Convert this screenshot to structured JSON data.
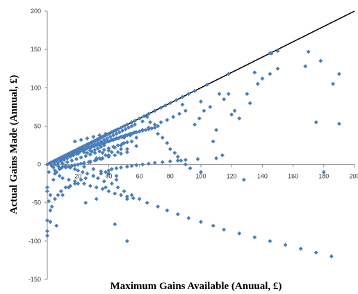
{
  "chart_data": {
    "type": "scatter",
    "title": "",
    "xlabel": "Maximum Gains Available (Anuual, £)",
    "ylabel": "Actual Gains Made (Annual, £)",
    "xlim": [
      0,
      200
    ],
    "ylim": [
      -150,
      200
    ],
    "x_ticks": [
      "20",
      "40",
      "60",
      "80",
      "100",
      "120",
      "140",
      "160",
      "180",
      "200"
    ],
    "y_ticks": [
      "200",
      "150",
      "100",
      "50",
      "0",
      "-50",
      "-100",
      "-150"
    ],
    "grid": false,
    "legend": "none",
    "marker_color": "#4a7ebb",
    "reference_line": {
      "x": [
        0,
        200
      ],
      "y": [
        0,
        200
      ],
      "color": "#000000"
    },
    "series": [
      {
        "x": [
          0,
          1,
          2,
          3,
          4,
          5,
          6,
          7,
          8,
          9,
          10,
          11,
          12,
          13,
          14,
          15,
          16,
          17,
          18,
          19,
          20,
          21,
          22,
          23,
          24,
          25,
          26,
          27,
          28,
          29,
          30,
          31,
          32,
          33,
          34,
          35,
          36,
          37,
          38,
          39,
          40,
          41,
          42,
          43,
          44,
          45,
          46,
          48,
          50,
          52,
          55,
          57,
          60,
          63,
          66,
          70,
          74,
          77,
          80,
          84,
          88,
          92,
          96,
          104,
          118,
          145,
          150,
          170,
          2,
          4,
          5,
          6,
          8,
          9,
          10,
          11,
          12,
          13,
          14,
          15,
          16,
          17,
          18,
          19,
          20,
          21,
          22,
          23,
          24,
          25,
          26,
          27,
          28,
          29,
          30,
          31,
          32,
          33,
          34,
          35,
          36,
          37,
          38,
          39,
          40,
          41,
          42,
          43,
          44,
          45,
          46,
          47,
          48,
          49,
          50,
          51,
          52,
          53,
          54,
          55,
          56,
          57,
          58,
          60,
          62,
          64,
          66,
          68,
          70,
          3,
          5,
          7,
          9,
          11,
          13,
          15,
          17,
          19,
          21,
          23,
          25,
          27,
          29,
          31,
          33,
          35,
          37,
          39,
          41,
          43,
          45,
          47,
          49,
          51,
          53,
          55,
          57,
          4,
          7,
          10,
          13,
          16,
          19,
          22,
          25,
          28,
          31,
          34,
          37,
          40,
          43,
          46,
          49,
          52,
          8,
          12,
          16,
          20,
          24,
          28,
          32,
          36,
          40,
          44,
          48,
          52,
          5,
          9,
          14,
          18,
          22,
          27,
          31,
          35,
          65,
          67,
          70,
          72,
          75,
          78,
          80,
          83,
          85,
          87,
          90,
          93,
          96,
          99,
          102,
          106,
          110,
          112,
          115,
          118,
          120,
          125,
          128,
          132,
          135,
          137,
          140,
          145,
          150,
          168,
          175,
          180,
          186,
          190,
          62,
          72,
          88,
          100,
          108,
          114,
          122,
          130,
          146,
          178,
          190,
          0,
          2,
          3,
          5,
          7,
          9,
          12,
          15,
          18,
          22,
          25,
          30,
          35,
          38,
          40,
          42,
          45,
          48,
          52,
          55,
          58,
          62,
          66,
          70,
          75,
          80,
          85,
          90,
          98,
          110,
          1,
          5,
          8,
          10,
          14,
          18,
          24,
          28,
          32,
          36,
          40,
          44,
          48,
          52,
          56,
          0,
          0,
          2,
          4,
          6,
          8,
          10,
          12,
          15,
          18,
          20,
          23,
          26,
          30,
          33,
          37,
          42,
          46,
          50,
          55,
          60,
          65,
          72,
          78,
          85,
          92,
          100,
          108,
          115,
          125,
          135,
          145,
          155,
          165,
          175,
          185,
          0,
          1,
          2,
          6,
          10,
          14,
          20,
          25,
          32,
          38,
          44,
          52,
          0,
          6,
          45,
          52,
          28,
          34,
          40,
          46,
          52,
          58,
          36,
          40,
          44,
          48,
          50,
          55,
          58,
          18,
          22,
          26,
          30,
          34,
          38,
          24,
          30,
          35,
          40,
          45,
          50,
          54,
          58,
          62,
          66,
          70,
          74,
          78,
          82,
          86,
          90,
          12,
          16,
          20,
          24,
          28,
          32,
          38,
          42,
          48,
          21,
          23,
          25,
          27,
          29,
          31,
          33,
          100,
          26,
          29,
          31,
          33,
          35,
          37
        ],
        "y": [
          0,
          1,
          2,
          3,
          4,
          5,
          6,
          7,
          8,
          9,
          10,
          11,
          12,
          13,
          14,
          15,
          16,
          17,
          18,
          19,
          20,
          21,
          22,
          23,
          24,
          25,
          26,
          27,
          28,
          29,
          30,
          31,
          32,
          33,
          34,
          35,
          36,
          37,
          38,
          39,
          40,
          41,
          42,
          43,
          44,
          45,
          46,
          48,
          50,
          52,
          55,
          57,
          60,
          63,
          66,
          70,
          74,
          77,
          80,
          84,
          88,
          92,
          96,
          104,
          118,
          145,
          148,
          147,
          1,
          3,
          4,
          5,
          6,
          7,
          8,
          9,
          10,
          11,
          12,
          12,
          13,
          14,
          15,
          16,
          16,
          17,
          18,
          19,
          19,
          20,
          21,
          22,
          22,
          23,
          24,
          24,
          25,
          26,
          26,
          27,
          28,
          28,
          29,
          30,
          30,
          31,
          32,
          32,
          33,
          34,
          34,
          35,
          36,
          36,
          37,
          38,
          38,
          39,
          40,
          40,
          41,
          42,
          42,
          43,
          44,
          45,
          46,
          47,
          48,
          -2,
          0,
          2,
          4,
          6,
          8,
          10,
          12,
          14,
          16,
          18,
          20,
          22,
          24,
          26,
          28,
          30,
          32,
          34,
          36,
          38,
          40,
          42,
          44,
          46,
          48,
          50,
          52,
          -4,
          -2,
          1,
          3,
          5,
          7,
          9,
          11,
          13,
          15,
          17,
          19,
          21,
          23,
          25,
          27,
          29,
          -6,
          -4,
          -2,
          0,
          2,
          4,
          6,
          8,
          10,
          12,
          14,
          16,
          -8,
          -5,
          -3,
          -1,
          1,
          3,
          5,
          7,
          62,
          55,
          48,
          40,
          35,
          28,
          20,
          15,
          10,
          5,
          0,
          -5,
          52,
          60,
          70,
          75,
          45,
          92,
          85,
          92,
          65,
          60,
          -20,
          80,
          120,
          105,
          112,
          118,
          125,
          128,
          55,
          -10,
          105,
          118,
          56,
          50,
          78,
          82,
          30,
          12,
          70,
          92,
          145,
          135,
          53,
          -93,
          -75,
          -55,
          -45,
          -40,
          -35,
          -30,
          -28,
          -25,
          -20,
          -18,
          -15,
          -12,
          -10,
          -8,
          -6,
          -5,
          -4,
          -3,
          -2,
          -1,
          0,
          1,
          2,
          3,
          4,
          5,
          6,
          7,
          8,
          -10,
          -12,
          -15,
          -18,
          -20,
          -22,
          -25,
          -28,
          -30,
          -32,
          -35,
          -38,
          -40,
          -42,
          -44,
          -30,
          -73,
          -40,
          -20,
          -10,
          -5,
          -3,
          -2,
          -4,
          -6,
          -8,
          -10,
          -12,
          -15,
          -18,
          -22,
          -25,
          -30,
          -35,
          -40,
          -45,
          -50,
          -55,
          -60,
          -65,
          -70,
          -75,
          -80,
          -85,
          -90,
          -95,
          -100,
          -105,
          -110,
          -115,
          -120,
          -35,
          -48,
          -60,
          -80,
          -40,
          -30,
          -25,
          -50,
          -45,
          -30,
          -78,
          -100,
          -87,
          -10,
          -20,
          -45,
          3,
          8,
          12,
          16,
          20,
          24,
          15,
          18,
          22,
          25,
          28,
          30,
          35,
          30,
          32,
          34,
          36,
          38,
          40,
          -3,
          -6,
          -9,
          -12,
          -15,
          35,
          38,
          42,
          45,
          48,
          52,
          55,
          58,
          62,
          66,
          70,
          10,
          12,
          14,
          16,
          18,
          8,
          12,
          16,
          20,
          20,
          22,
          24,
          26,
          28,
          30,
          32,
          -10,
          15,
          17,
          19,
          21,
          23,
          25
        ]
      }
    ]
  }
}
